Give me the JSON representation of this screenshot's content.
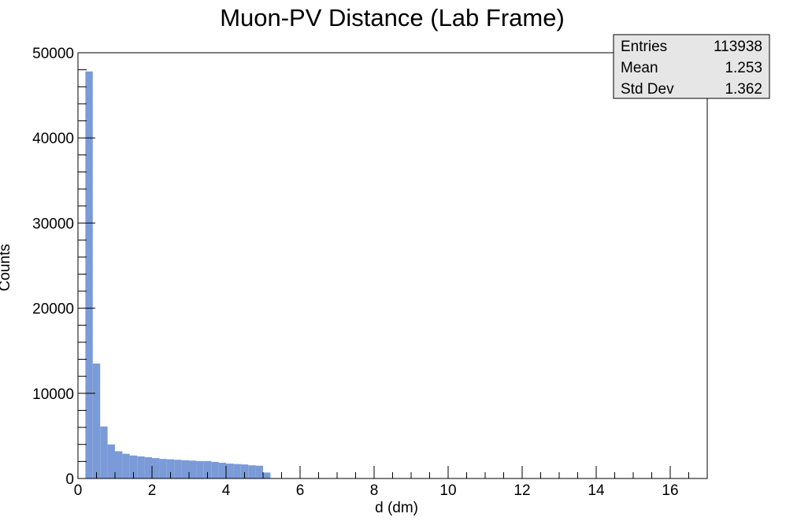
{
  "chart_data": {
    "type": "bar",
    "title": "Muon-PV Distance (Lab Frame)",
    "xlabel": "d (dm)",
    "ylabel": "Counts",
    "xlim": [
      0,
      17
    ],
    "ylim": [
      0,
      50000
    ],
    "x_ticks": [
      "0",
      "2",
      "4",
      "6",
      "8",
      "10",
      "12",
      "14",
      "16"
    ],
    "y_ticks": [
      "0",
      "10000",
      "20000",
      "30000",
      "40000",
      "50000"
    ],
    "bin_width": 0.2,
    "x_start": 0.0,
    "values": [
      0,
      47800,
      13500,
      6100,
      4000,
      3200,
      2900,
      2700,
      2600,
      2500,
      2400,
      2300,
      2250,
      2200,
      2150,
      2100,
      2050,
      2050,
      1950,
      1850,
      1750,
      1700,
      1650,
      1550,
      1500,
      700
    ],
    "fill_color": "#7b9bd8",
    "stats": {
      "rows": [
        {
          "label": "Entries",
          "value": "113938"
        },
        {
          "label": "Mean",
          "value": "1.253"
        },
        {
          "label": "Std Dev",
          "value": "1.362"
        }
      ]
    }
  }
}
